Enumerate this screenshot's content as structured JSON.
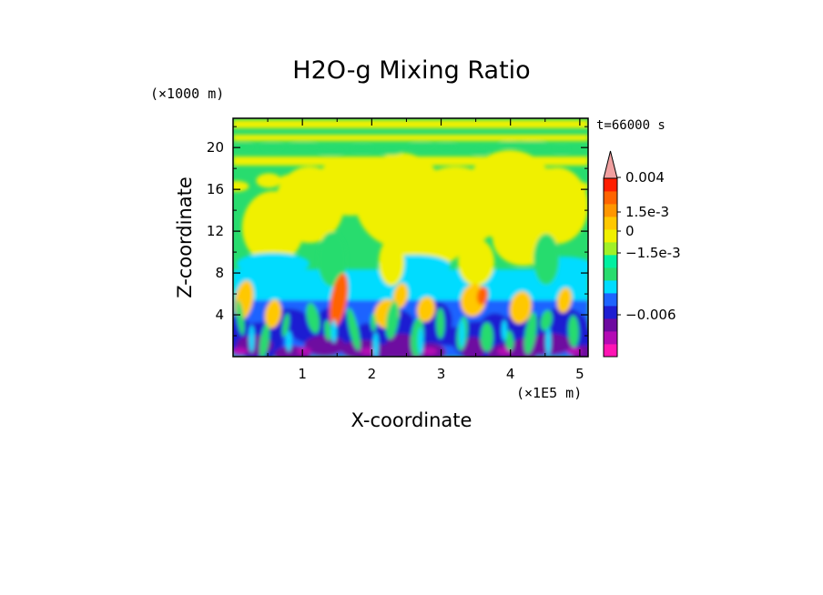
{
  "chart_data": {
    "type": "heatmap",
    "title": "H2O-g Mixing Ratio",
    "xlabel": "X-coordinate",
    "ylabel": "Z-coordinate",
    "x_unit": "(×1E5 m)",
    "y_unit": "(×1000 m)",
    "time_label": "t=66000 s",
    "xlim": [
      0,
      5.12
    ],
    "ylim": [
      0,
      22.8
    ],
    "x_ticks": [
      1,
      2,
      3,
      4,
      5
    ],
    "x_tick_labels": [
      "1",
      "2",
      "3",
      "4",
      "5"
    ],
    "y_ticks": [
      4,
      8,
      12,
      16,
      20
    ],
    "y_tick_labels": [
      "4",
      "8",
      "12",
      "16",
      "20"
    ],
    "colorbar": {
      "colors": [
        "#ff14b4",
        "#b40ab4",
        "#6e0aa0",
        "#1e1ed2",
        "#1e64ff",
        "#00dcff",
        "#28dc6e",
        "#00f0a0",
        "#a0f028",
        "#f0f000",
        "#ffc800",
        "#ff9600",
        "#ff6400",
        "#ff1e00",
        "#f0a0a0"
      ],
      "tick_labels": [
        "0.004",
        "1.5e-3",
        "0",
        "−1.5e-3",
        "−0.006"
      ],
      "tick_values": [
        0.004,
        0.0015,
        0,
        -0.0015,
        -0.006
      ]
    }
  }
}
